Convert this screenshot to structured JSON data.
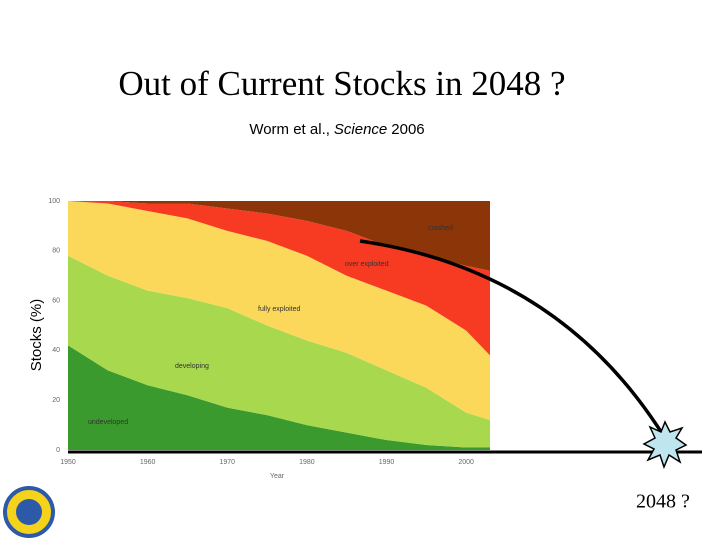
{
  "slide": {
    "title": "Out of Current Stocks in 2048 ?",
    "subtitle": {
      "before": "Worm et al.,",
      "italic": "Science",
      "after": "2006"
    },
    "annotation": "2048 ?"
  },
  "chart_data": {
    "type": "stacked_area",
    "x_label": "Year",
    "y_label": "Stocks (%)",
    "x": [
      1950,
      1955,
      1960,
      1965,
      1970,
      1975,
      1980,
      1985,
      1990,
      1995,
      2000,
      2003
    ],
    "series": [
      {
        "name": "undeveloped",
        "color": "#3a9a2e",
        "values": [
          42,
          32,
          26,
          22,
          17,
          14,
          10,
          7,
          4,
          2,
          1,
          1
        ]
      },
      {
        "name": "developing",
        "color": "#a8d84e",
        "values": [
          36,
          38,
          38,
          39,
          40,
          36,
          34,
          32,
          28,
          23,
          14,
          11
        ]
      },
      {
        "name": "fully exploited",
        "color": "#fbd85a",
        "values": [
          22,
          29,
          32,
          32,
          31,
          34,
          34,
          31,
          32,
          33,
          33,
          26
        ]
      },
      {
        "name": "over exploited",
        "color": "#f73a22",
        "values": [
          0,
          1,
          3,
          6,
          9,
          11,
          14,
          18,
          18,
          20,
          26,
          34
        ]
      },
      {
        "name": "crashed",
        "color": "#8b3508",
        "values": [
          0,
          0,
          1,
          1,
          3,
          5,
          8,
          12,
          18,
          22,
          26,
          28
        ]
      }
    ],
    "xlim": [
      1950,
      2003
    ],
    "xticks": [
      1950,
      1960,
      1970,
      1980,
      1990,
      2000
    ],
    "ylim": [
      0,
      100
    ],
    "yticks": [
      0,
      20,
      40,
      60,
      80,
      100
    ],
    "grid": false
  }
}
